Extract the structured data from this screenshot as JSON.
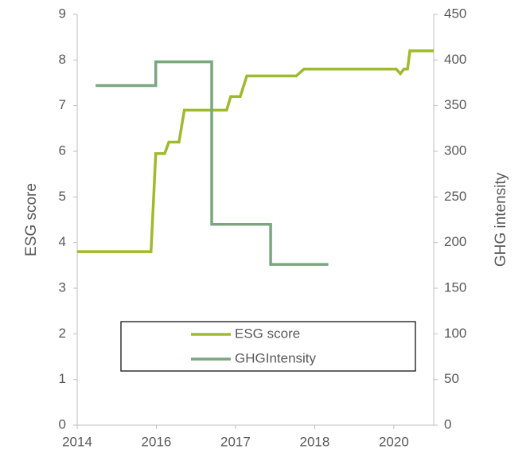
{
  "chart_data": {
    "type": "line",
    "xlabel": null,
    "ylabel": "ESG score",
    "y2label": "GHG intensity",
    "xlim": [
      2014.95,
      2020.94
    ],
    "xticks": [
      {
        "value": 2014.95,
        "label": "2014"
      },
      {
        "value": 2016.28,
        "label": "2016"
      },
      {
        "value": 2017.61,
        "label": "2017"
      },
      {
        "value": 2018.94,
        "label": "2018"
      },
      {
        "value": 2020.27,
        "label": "2020"
      }
    ],
    "ylim": [
      0,
      9
    ],
    "yticks": [
      0,
      1,
      2,
      3,
      4,
      5,
      6,
      7,
      8,
      9
    ],
    "y2lim": [
      0,
      450
    ],
    "y2ticks": [
      0,
      50,
      100,
      150,
      200,
      250,
      300,
      350,
      400,
      450
    ],
    "series": [
      {
        "name": "ESG score",
        "color": "#9dbb2c",
        "x": [
          2014.95,
          2016.19,
          2016.27,
          2016.42,
          2016.49,
          2016.66,
          2016.75,
          2017.46,
          2017.53,
          2017.69,
          2017.8,
          2018.63,
          2018.76,
          2020.31,
          2020.38,
          2020.44,
          2020.5,
          2020.54,
          2020.94
        ],
        "values": [
          3.8,
          3.8,
          5.95,
          5.95,
          6.2,
          6.2,
          6.9,
          6.9,
          7.2,
          7.2,
          7.65,
          7.65,
          7.8,
          7.8,
          7.7,
          7.8,
          7.8,
          8.2,
          8.2
        ]
      },
      {
        "name": "GHGIntensity",
        "color": "#7aa77f",
        "axis": "y2",
        "x": [
          2015.26,
          2016.27,
          2016.27,
          2017.21,
          2017.21,
          2018.2,
          2018.2,
          2019.17
        ],
        "values": [
          372,
          372,
          398,
          398,
          220,
          220,
          176,
          176
        ]
      }
    ]
  }
}
